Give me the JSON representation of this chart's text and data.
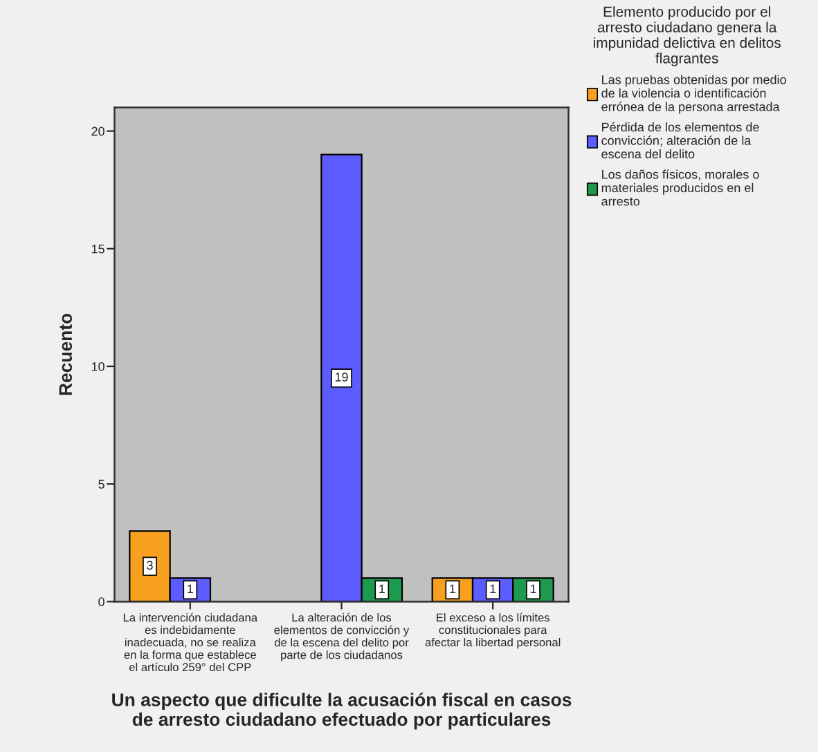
{
  "chart_data": {
    "type": "bar",
    "xlabel": "Un aspecto que dificulte la acusación fiscal en casos\nde arresto ciudadano efectuado por particulares",
    "ylabel": "Recuento",
    "legend_title": "Elemento producido por el\narresto ciudadano genera la\nimpunidad delictiva en delitos\nflagrantes",
    "categories": [
      "La intervención ciudadana\nes indebidamente\ninadecuada, no se realiza\nen la forma que establece\nel artículo 259° del CPP",
      "La alteración de los\nelementos de convicción y\nde la escena del delito por\nparte de los ciudadanos",
      "El exceso a los límites\nconstitucionales para\nafectar la libertad personal"
    ],
    "series": [
      {
        "name": "Las pruebas obtenidas por medio\nde la violencia o identificación\nerrónea de la persona arrestada",
        "color": "#f7a020",
        "values": [
          3,
          null,
          1
        ]
      },
      {
        "name": "Pérdida de los elementos de\nconvicción; alteración de la\nescena del delito",
        "color": "#5d5dff",
        "values": [
          1,
          19,
          1
        ]
      },
      {
        "name": "Los daños físicos, morales o\nmateriales producidos en el\narresto",
        "color": "#1e9a4e",
        "values": [
          null,
          1,
          1
        ]
      }
    ],
    "ylim": [
      0,
      21
    ],
    "yticks": [
      0,
      5,
      10,
      15,
      20
    ],
    "data_labels": true,
    "legend": "right",
    "grid": false
  }
}
